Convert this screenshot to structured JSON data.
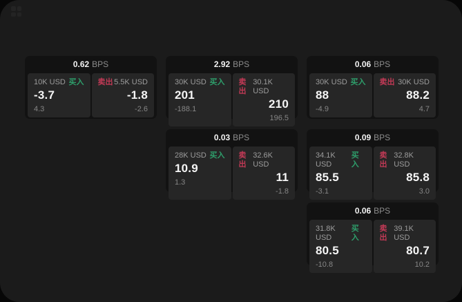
{
  "theme": {
    "buy_color": "#2e9e6b",
    "sell_color": "#c23a56",
    "surface_color": "#1b1b1b",
    "card_color": "#121212",
    "panel_color": "#262626"
  },
  "labels": {
    "bps_unit": "BPS",
    "buy": "买入",
    "sell": "卖出"
  },
  "cards": [
    {
      "bps": "0.62",
      "buy": {
        "size": "10K USD",
        "price": "-3.7",
        "delta": "4.3"
      },
      "sell": {
        "size": "5.5K USD",
        "price": "-1.8",
        "delta": "-2.6"
      }
    },
    {
      "bps": "2.92",
      "buy": {
        "size": "30K USD",
        "price": "201",
        "delta": "-188.1"
      },
      "sell": {
        "size": "30.1K USD",
        "price": "210",
        "delta": "196.5"
      }
    },
    {
      "bps": "0.06",
      "buy": {
        "size": "30K USD",
        "price": "88",
        "delta": "-4.9"
      },
      "sell": {
        "size": "30K USD",
        "price": "88.2",
        "delta": "4.7"
      }
    },
    {
      "bps": "0.03",
      "buy": {
        "size": "28K USD",
        "price": "10.9",
        "delta": "1.3"
      },
      "sell": {
        "size": "32.6K USD",
        "price": "11",
        "delta": "-1.8"
      }
    },
    {
      "bps": "0.09",
      "buy": {
        "size": "34.1K USD",
        "price": "85.5",
        "delta": "-3.1"
      },
      "sell": {
        "size": "32.8K USD",
        "price": "85.8",
        "delta": "3.0"
      }
    },
    {
      "bps": "0.06",
      "buy": {
        "size": "31.8K USD",
        "price": "80.5",
        "delta": "-10.8"
      },
      "sell": {
        "size": "39.1K USD",
        "price": "80.7",
        "delta": "10.2"
      }
    }
  ]
}
